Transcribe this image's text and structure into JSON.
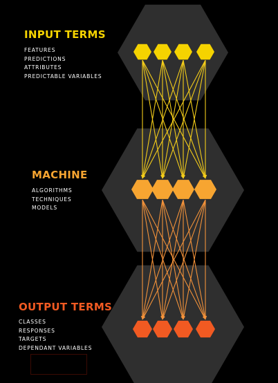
{
  "colors": {
    "background": "#000000",
    "panel": "#2f2f2f",
    "input": "#f5d300",
    "machine": "#f7a531",
    "output": "#f15a22",
    "input_edges": "#f4cd1a",
    "output_edges": "#f3923a"
  },
  "sections": {
    "input": {
      "title": "INPUT TERMS",
      "items": [
        "FEATURES",
        "PREDICTIONS",
        "ATTRIBUTES",
        "PREDICTABLE VARIABLES"
      ]
    },
    "machine": {
      "title": "MACHINE",
      "items": [
        "ALGORITHMS",
        "TECHNIQUES",
        "MODELS"
      ]
    },
    "output": {
      "title": "OUTPUT TERMS",
      "items": [
        "CLASSES",
        "RESPONSES",
        "TARGETS",
        "DEPENDANT VARIABLES"
      ]
    }
  },
  "network": {
    "node_shape": "hexagon",
    "layers": [
      {
        "name": "input",
        "node_count": 4
      },
      {
        "name": "machine",
        "node_count": 4
      },
      {
        "name": "output",
        "node_count": 4
      }
    ],
    "connections": "fully-connected"
  }
}
